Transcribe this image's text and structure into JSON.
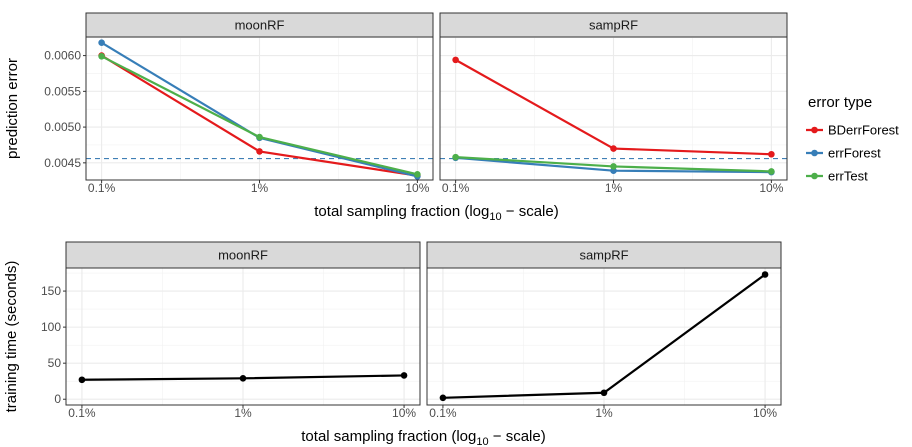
{
  "chart_data": [
    {
      "type": "line",
      "facet_var": "method",
      "facets": [
        {
          "name": "moonRF",
          "series": [
            {
              "name": "BDerrForest",
              "values": [
                0.006,
                0.00466,
                0.00432
              ]
            },
            {
              "name": "errForest",
              "values": [
                0.00618,
                0.00485,
                0.00431
              ]
            },
            {
              "name": "errTest",
              "values": [
                0.00599,
                0.00486,
                0.00434
              ]
            }
          ]
        },
        {
          "name": "sampRF",
          "series": [
            {
              "name": "BDerrForest",
              "values": [
                0.00594,
                0.0047,
                0.00462
              ]
            },
            {
              "name": "errForest",
              "values": [
                0.00457,
                0.00439,
                0.00437
              ]
            },
            {
              "name": "errTest",
              "values": [
                0.00458,
                0.00445,
                0.00438
              ]
            }
          ]
        }
      ],
      "x": [
        "0.1%",
        "1%",
        "10%"
      ],
      "xlabel": "total sampling fraction (log10 - scale)",
      "ylabel": "prediction error",
      "yticks": [
        "0.0045",
        "0.0050",
        "0.0055",
        "0.0060"
      ],
      "ylim": [
        0.00426,
        0.00626
      ],
      "reference_line": {
        "y": 0.00456,
        "style": "dashed",
        "color": "#3f7fb5"
      },
      "legend": {
        "title": "error type",
        "placement": "right",
        "entries": [
          {
            "name": "BDerrForest",
            "color": "#e41a1c"
          },
          {
            "name": "errForest",
            "color": "#377eb8"
          },
          {
            "name": "errTest",
            "color": "#4daf4a"
          }
        ]
      },
      "grid": true
    },
    {
      "type": "line",
      "facet_var": "method",
      "facets": [
        {
          "name": "moonRF",
          "values": [
            27,
            29,
            33
          ]
        },
        {
          "name": "sampRF",
          "values": [
            2,
            9,
            173
          ]
        }
      ],
      "x": [
        "0.1%",
        "1%",
        "10%"
      ],
      "xlabel": "total sampling fraction (log10 - scale)",
      "ylabel": "training time (seconds)",
      "yticks": [
        "0",
        "50",
        "100",
        "150"
      ],
      "ylim": [
        -8,
        182
      ],
      "color": "#000000",
      "grid": true
    }
  ]
}
